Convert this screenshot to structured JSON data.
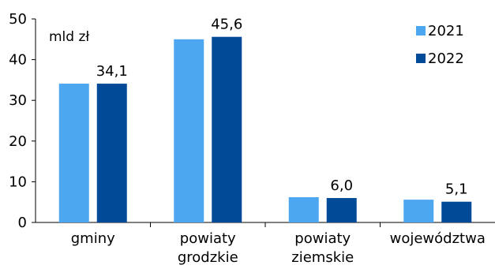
{
  "chart_data": {
    "type": "bar",
    "unit_label": "mld zł",
    "categories": [
      [
        "gminy"
      ],
      [
        "powiaty",
        "grodzkie"
      ],
      [
        "powiaty",
        "ziemskie"
      ],
      [
        "województwa"
      ]
    ],
    "series": [
      {
        "name": "2021",
        "values": [
          34.1,
          45.0,
          6.2,
          5.6
        ],
        "color": "#4da6f0"
      },
      {
        "name": "2022",
        "values": [
          34.1,
          45.6,
          6.0,
          5.1
        ],
        "color": "#004a97"
      }
    ],
    "data_labels": [
      "34,1",
      "45,6",
      "6,0",
      "5,1"
    ],
    "ylim": [
      0,
      50
    ],
    "yticks": [
      0,
      10,
      20,
      30,
      40,
      50
    ],
    "grid": false,
    "legend_position": "top-right"
  }
}
